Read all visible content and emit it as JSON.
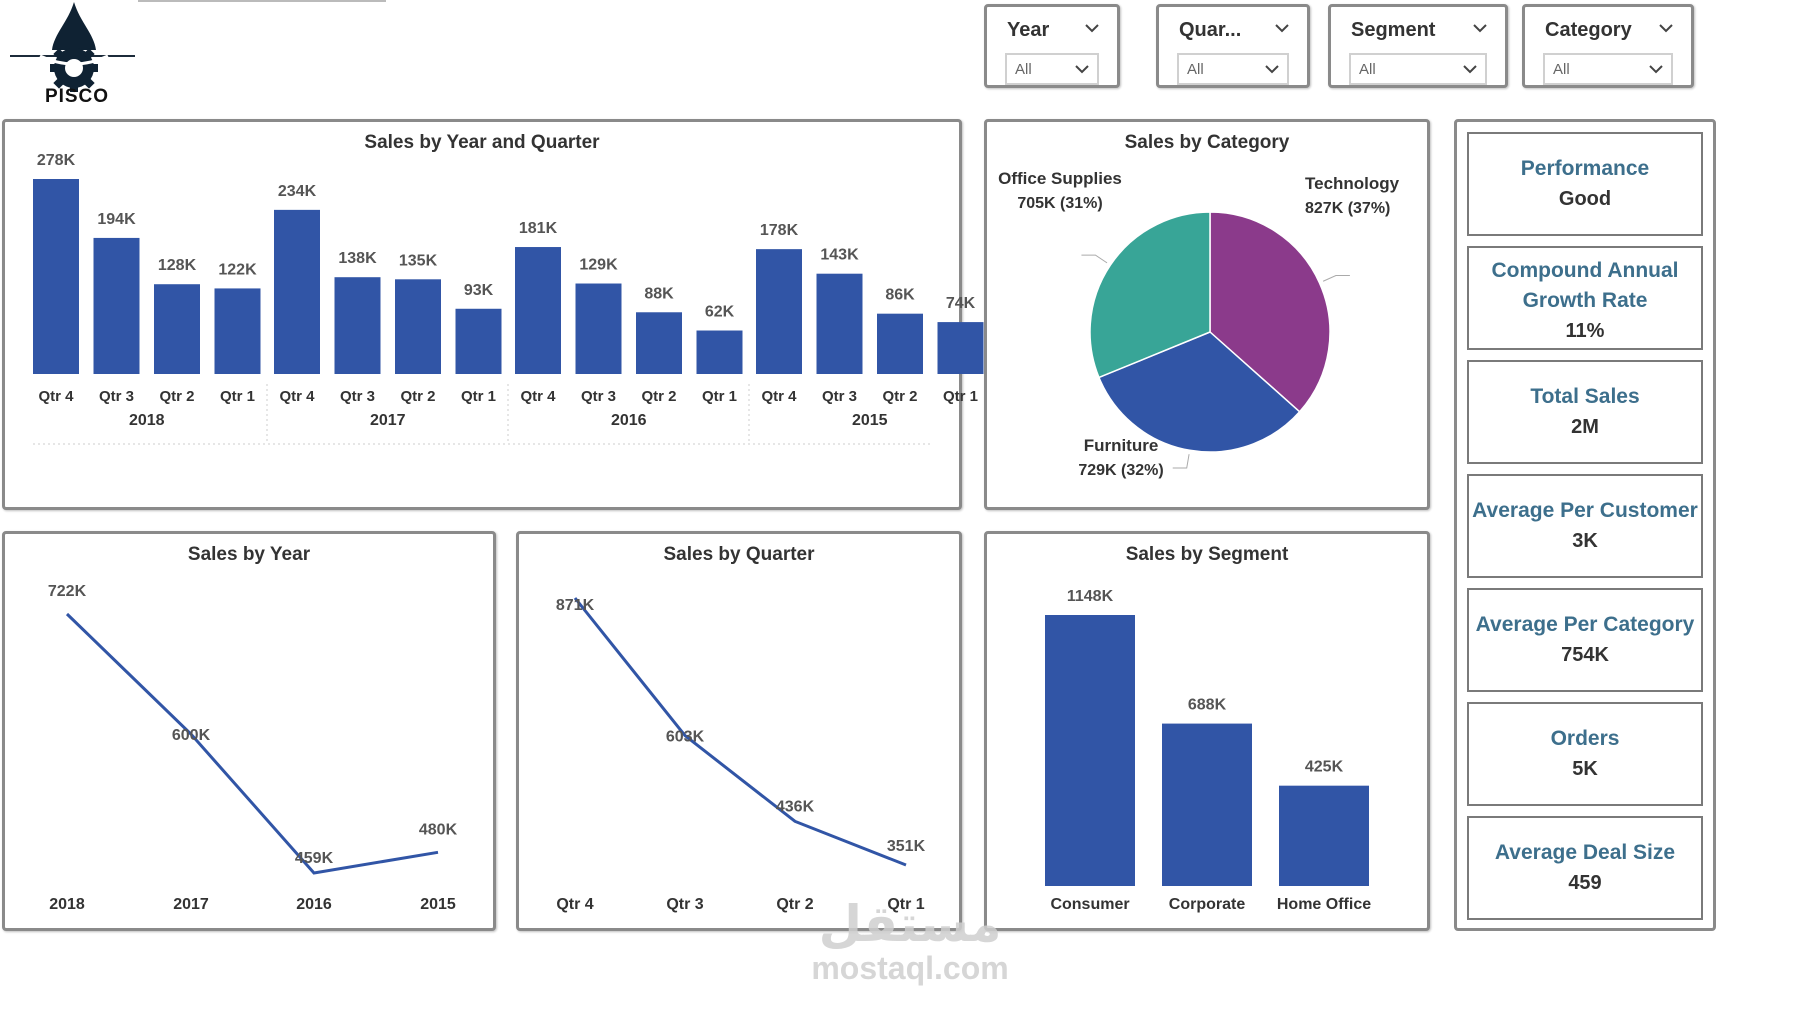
{
  "logo": {
    "text": "PISCO"
  },
  "slicers": [
    {
      "label": "Year",
      "value": "All"
    },
    {
      "label": "Quar...",
      "value": "All"
    },
    {
      "label": "Segment",
      "value": "All"
    },
    {
      "label": "Category",
      "value": "All"
    }
  ],
  "kpis": [
    {
      "label": "Performance",
      "value": "Good"
    },
    {
      "label": "Compound Annual Growth Rate",
      "value": "11%"
    },
    {
      "label": "Total Sales",
      "value": "2M"
    },
    {
      "label": "Average Per Customer",
      "value": "3K"
    },
    {
      "label": "Average Per Category",
      "value": "754K"
    },
    {
      "label": "Orders",
      "value": "5K"
    },
    {
      "label": "Average Deal Size",
      "value": "459"
    }
  ],
  "watermark": {
    "arabic": "مستقل",
    "latin": "mostaql.com"
  },
  "colors": {
    "bar": "#3155a6",
    "line": "#3155a6",
    "office": "#38a597",
    "technology": "#8b3a8b",
    "furniture": "#3155a6",
    "kpi_label": "#3d6f8c"
  },
  "chart_data": [
    {
      "id": "year_quarter",
      "type": "bar",
      "title": "Sales by Year and Quarter",
      "groups": [
        {
          "year": "2018",
          "quarters": [
            "Qtr 4",
            "Qtr 3",
            "Qtr 2",
            "Qtr 1"
          ],
          "values": [
            278,
            194,
            128,
            122
          ],
          "labels": [
            "278K",
            "194K",
            "128K",
            "122K"
          ]
        },
        {
          "year": "2017",
          "quarters": [
            "Qtr 4",
            "Qtr 3",
            "Qtr 2",
            "Qtr 1"
          ],
          "values": [
            234,
            138,
            135,
            93
          ],
          "labels": [
            "234K",
            "138K",
            "135K",
            "93K"
          ]
        },
        {
          "year": "2016",
          "quarters": [
            "Qtr 4",
            "Qtr 3",
            "Qtr 2",
            "Qtr 1"
          ],
          "values": [
            181,
            129,
            88,
            62
          ],
          "labels": [
            "181K",
            "129K",
            "88K",
            "62K"
          ]
        },
        {
          "year": "2015",
          "quarters": [
            "Qtr 4",
            "Qtr 3",
            "Qtr 2",
            "Qtr 1"
          ],
          "values": [
            178,
            143,
            86,
            74
          ],
          "labels": [
            "178K",
            "143K",
            "86K",
            "74K"
          ]
        }
      ],
      "ylim": [
        0,
        278
      ]
    },
    {
      "id": "category",
      "type": "pie",
      "title": "Sales by Category",
      "slices": [
        {
          "name": "Technology",
          "value": 827,
          "label": "827K (37%)"
        },
        {
          "name": "Furniture",
          "value": 729,
          "label": "729K (32%)"
        },
        {
          "name": "Office Supplies",
          "value": 705,
          "label": "705K (31%)"
        }
      ]
    },
    {
      "id": "year",
      "type": "line",
      "title": "Sales by Year",
      "categories": [
        "2018",
        "2017",
        "2016",
        "2015"
      ],
      "values": [
        722,
        600,
        459,
        480
      ],
      "labels": [
        "722K",
        "600K",
        "459K",
        "480K"
      ]
    },
    {
      "id": "quarter",
      "type": "line",
      "title": "Sales by Quarter",
      "categories": [
        "Qtr 4",
        "Qtr 3",
        "Qtr 2",
        "Qtr 1"
      ],
      "values": [
        871,
        603,
        436,
        351
      ],
      "labels": [
        "871K",
        "603K",
        "436K",
        "351K"
      ]
    },
    {
      "id": "segment",
      "type": "bar",
      "title": "Sales by Segment",
      "categories": [
        "Consumer",
        "Corporate",
        "Home Office"
      ],
      "values": [
        1148,
        688,
        425
      ],
      "labels": [
        "1148K",
        "688K",
        "425K"
      ]
    }
  ]
}
